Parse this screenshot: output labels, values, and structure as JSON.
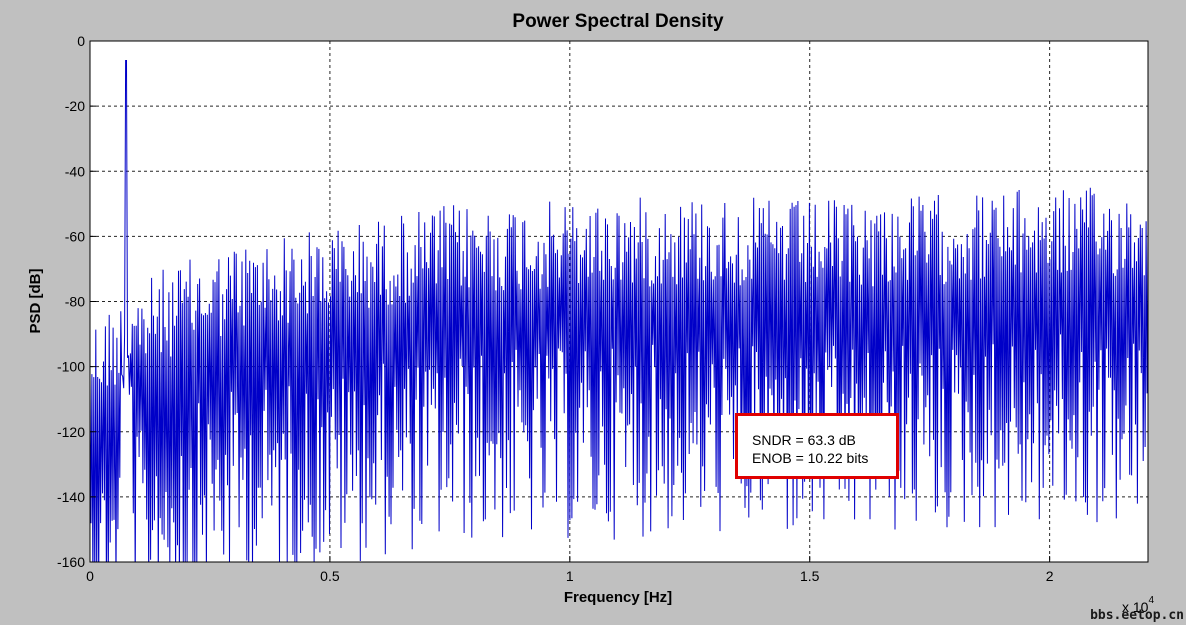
{
  "chart_data": {
    "type": "line",
    "title": "Power Spectral Density",
    "xlabel": "Frequency [Hz]",
    "ylabel": "PSD [dB]",
    "xlim": [
      0,
      22050
    ],
    "ylim": [
      -160,
      0
    ],
    "x_scale_label": "x 10^4",
    "x_ticks": [
      {
        "value": 0,
        "label": "0"
      },
      {
        "value": 5000,
        "label": "0.5"
      },
      {
        "value": 10000,
        "label": "1"
      },
      {
        "value": 15000,
        "label": "1.5"
      },
      {
        "value": 20000,
        "label": "2"
      }
    ],
    "y_ticks": [
      {
        "value": 0,
        "label": "0"
      },
      {
        "value": -20,
        "label": "-20"
      },
      {
        "value": -40,
        "label": "-40"
      },
      {
        "value": -60,
        "label": "-60"
      },
      {
        "value": -80,
        "label": "-80"
      },
      {
        "value": -100,
        "label": "-100"
      },
      {
        "value": -120,
        "label": "-120"
      },
      {
        "value": -140,
        "label": "-140"
      },
      {
        "value": -160,
        "label": "-160"
      }
    ],
    "grid": true,
    "line_color": "#0000c8",
    "series": [
      {
        "signal_peak": {
          "x": 750,
          "y": -6
        },
        "noise_floor_upper_envelope": {
          "x": [
            0,
            1500,
            3000,
            5000,
            7500,
            10000,
            12500,
            15000,
            17500,
            20000,
            22050
          ],
          "y": [
            -85,
            -70,
            -62,
            -57,
            -50,
            -49,
            -47,
            -49,
            -47,
            -45,
            -45
          ]
        },
        "noise_floor_lower_envelope": {
          "x": [
            0,
            22050
          ],
          "y": [
            -160,
            -160
          ]
        }
      }
    ],
    "annotations": [
      {
        "text": "SNDR = 63.3 dB"
      },
      {
        "text": "ENOB = 10.22 bits"
      }
    ]
  },
  "watermark": "bbs.eetop.cn",
  "colors": {
    "figure_bg": "#c0c0c0",
    "axes_bg": "#ffffff",
    "annotation_border": "#e00000"
  }
}
